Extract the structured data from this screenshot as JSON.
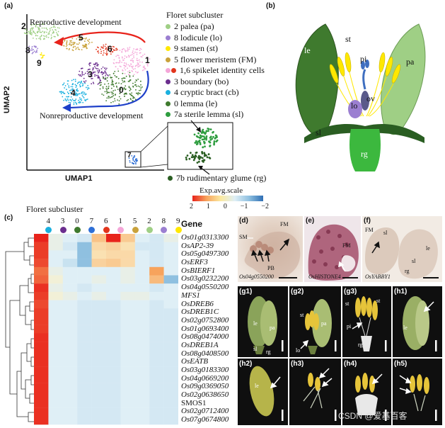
{
  "panel_a": {
    "label": "(a)",
    "y_axis": "UMAP2",
    "x_axis": "UMAP1",
    "top_arrow_text": "Reproductive development",
    "bottom_arrow_text": "Nonreproductive development",
    "cluster_numbers": [
      "2",
      "5",
      "6",
      "1",
      "8",
      "9",
      "3",
      "0",
      "4",
      "7"
    ],
    "legend_title": "Floret subcluster",
    "legend": [
      {
        "text": "2 palea (pa)",
        "colors": [
          "#9fcf85"
        ]
      },
      {
        "text": "8 lodicule (lo)",
        "colors": [
          "#9b7fd1"
        ]
      },
      {
        "text": "9 stamen (st)",
        "colors": [
          "#ffe800"
        ]
      },
      {
        "text": "5 flower meristem (FM)",
        "colors": [
          "#c9a23b"
        ]
      },
      {
        "text": "1,6 spikelet identity cells",
        "colors": [
          "#f4a6d8",
          "#e2351c"
        ]
      },
      {
        "text": "3 boundary (bo)",
        "colors": [
          "#6b2e8e"
        ]
      },
      {
        "text": "4 cryptic bract (cb)",
        "colors": [
          "#1ab0df"
        ]
      },
      {
        "text": "0 lemma (le)",
        "colors": [
          "#3f7a2e"
        ]
      },
      {
        "text": "7a sterile lemma (sl)",
        "colors": [
          "#2e9d3f"
        ]
      }
    ],
    "rg_label": "7b rudimentary glume (rg)",
    "rg_color": "#2a5e22"
  },
  "panel_b": {
    "label": "(b)",
    "parts": [
      "le",
      "st",
      "pi",
      "pa",
      "lo",
      "ov",
      "sl",
      "rg"
    ]
  },
  "panel_c": {
    "label": "(c)",
    "colorbar_title": "Exp.avg.scale",
    "colorbar_ticks": [
      "2",
      "1",
      "0",
      "−1",
      "−2"
    ],
    "column_title": "Floret subcluster",
    "gene_header": "Gene",
    "columns": [
      {
        "n": "4",
        "color": "#1ab0df"
      },
      {
        "n": "3",
        "color": "#6b2e8e"
      },
      {
        "n": "0",
        "color": "#3f7a2e"
      },
      {
        "n": "7",
        "color": "#2e6fd6"
      },
      {
        "n": "6",
        "color": "#e2351c"
      },
      {
        "n": "1",
        "color": "#f4a6d8"
      },
      {
        "n": "5",
        "color": "#c9a23b"
      },
      {
        "n": "2",
        "color": "#9fcf85"
      },
      {
        "n": "8",
        "color": "#9b7fd1"
      },
      {
        "n": "9",
        "color": "#ffe800"
      }
    ],
    "genes": [
      {
        "name": "Os01g0313300",
        "italic": true
      },
      {
        "name": "OsAP2-39",
        "italic": true
      },
      {
        "name": "Os05g0497300",
        "italic": true
      },
      {
        "name": "OsERF3",
        "italic": true
      },
      {
        "name": "OsBIERF1",
        "italic": true
      },
      {
        "name": "Os03g0232200",
        "italic": true
      },
      {
        "name": "Os04g0550200",
        "italic": true
      },
      {
        "name": "MFS1",
        "italic": true
      },
      {
        "name": "OsDREB6",
        "italic": true
      },
      {
        "name": "OsDREB1C",
        "italic": true
      },
      {
        "name": "Os02g0752800",
        "italic": true
      },
      {
        "name": "Os01g0693400",
        "italic": true
      },
      {
        "name": "Os08g0474000",
        "italic": true
      },
      {
        "name": "OsDREB1A",
        "italic": true
      },
      {
        "name": "Os08g0408500",
        "italic": true
      },
      {
        "name": "OsEATB",
        "italic": true
      },
      {
        "name": "Os03g0183300",
        "italic": true
      },
      {
        "name": "Os04g0669200",
        "italic": true
      },
      {
        "name": "Os09g0369050",
        "italic": true
      },
      {
        "name": "Os02g0638650",
        "italic": true
      },
      {
        "name": "SMOS1",
        "italic": false
      },
      {
        "name": "Os02g0712400",
        "italic": true
      },
      {
        "name": "Os07g0674800",
        "italic": true
      }
    ],
    "values": [
      [
        2.0,
        -0.2,
        -0.3,
        -0.4,
        0.6,
        2.0,
        0.5,
        -0.3,
        -0.4,
        -0.2
      ],
      [
        1.8,
        -0.2,
        -0.4,
        -1.0,
        0.3,
        0.4,
        0.2,
        -0.4,
        -0.4,
        -0.3
      ],
      [
        1.8,
        -0.3,
        -0.3,
        -1.0,
        0.2,
        0.3,
        0.3,
        -0.3,
        -0.4,
        -0.3
      ],
      [
        1.7,
        -0.3,
        -0.5,
        -1.0,
        0.4,
        0.5,
        0.3,
        -0.3,
        -0.4,
        -0.3
      ],
      [
        1.4,
        -0.2,
        -0.3,
        -0.3,
        -0.3,
        -0.3,
        -0.2,
        -0.3,
        1.0,
        -0.3
      ],
      [
        1.5,
        -0.1,
        -0.3,
        -0.3,
        -0.2,
        -0.3,
        -0.2,
        -0.3,
        0.7,
        -1.0
      ],
      [
        1.9,
        -0.2,
        -0.3,
        -0.4,
        -0.3,
        -0.3,
        -0.3,
        -0.3,
        -0.4,
        -0.3
      ],
      [
        1.8,
        -0.1,
        -0.2,
        -0.3,
        -0.2,
        -0.3,
        -0.2,
        -0.2,
        -0.3,
        -0.3
      ],
      [
        1.7,
        -0.3,
        -0.3,
        -0.4,
        -0.4,
        -0.4,
        -0.3,
        -0.3,
        -0.4,
        -0.3
      ],
      [
        1.8,
        -0.3,
        -0.3,
        -0.4,
        -0.4,
        -0.4,
        -0.3,
        -0.3,
        -0.4,
        -0.4
      ],
      [
        1.8,
        -0.3,
        -0.3,
        -0.4,
        -0.4,
        -0.4,
        -0.3,
        -0.3,
        -0.4,
        -0.4
      ],
      [
        1.8,
        -0.3,
        -0.3,
        -0.4,
        -0.4,
        -0.4,
        -0.3,
        -0.3,
        -0.4,
        -0.4
      ],
      [
        1.9,
        -0.3,
        -0.3,
        -0.4,
        -0.4,
        -0.4,
        -0.3,
        -0.3,
        -0.4,
        -0.4
      ],
      [
        1.9,
        -0.3,
        -0.3,
        -0.4,
        -0.4,
        -0.4,
        -0.3,
        -0.3,
        -0.4,
        -0.4
      ],
      [
        1.9,
        -0.3,
        -0.3,
        -0.4,
        -0.4,
        -0.4,
        -0.3,
        -0.3,
        -0.4,
        -0.4
      ],
      [
        1.9,
        -0.3,
        -0.3,
        -0.4,
        -0.4,
        -0.4,
        -0.3,
        -0.3,
        -0.4,
        -0.4
      ],
      [
        1.9,
        -0.3,
        -0.3,
        -0.4,
        -0.4,
        -0.4,
        -0.3,
        -0.3,
        -0.4,
        -0.4
      ],
      [
        1.9,
        -0.3,
        -0.3,
        -0.4,
        -0.4,
        -0.4,
        -0.3,
        -0.3,
        -0.4,
        -0.4
      ],
      [
        1.9,
        -0.3,
        -0.3,
        -0.4,
        -0.4,
        -0.4,
        -0.3,
        -0.3,
        -0.4,
        -0.4
      ],
      [
        1.9,
        -0.3,
        -0.3,
        -0.4,
        -0.4,
        -0.4,
        -0.3,
        -0.3,
        -0.4,
        -0.4
      ],
      [
        1.9,
        -0.3,
        -0.3,
        -0.4,
        -0.4,
        -0.4,
        -0.3,
        -0.3,
        -0.4,
        -0.4
      ],
      [
        1.9,
        -0.3,
        -0.3,
        -0.4,
        -0.4,
        -0.4,
        -0.3,
        -0.3,
        -0.4,
        -0.4
      ],
      [
        1.9,
        -0.3,
        -0.3,
        -0.4,
        -0.4,
        -0.4,
        -0.3,
        -0.3,
        -0.4,
        -0.4
      ]
    ]
  },
  "panel_d": {
    "label": "(d)",
    "gene": "Os04g0550200",
    "labels": [
      "FM",
      "SM",
      "PB"
    ]
  },
  "panel_e": {
    "label": "(e)",
    "gene": "OsHISTONE4",
    "labels": [
      "FM"
    ]
  },
  "panel_f": {
    "label": "(f)",
    "gene": "OsYABBY1",
    "labels": [
      "FM",
      "sl",
      "le",
      "sl",
      "rg"
    ]
  },
  "panel_g1": {
    "label": "(g1)",
    "labels": [
      "le",
      "pa",
      "sl",
      "rg"
    ]
  },
  "panel_g2": {
    "label": "(g2)",
    "labels": [
      "st",
      "pa",
      "lo"
    ]
  },
  "panel_g3": {
    "label": "(g3)",
    "labels": [
      "st",
      "st",
      "pi",
      "rg"
    ]
  },
  "panel_h1": {
    "label": "(h1)",
    "labels": [
      "le"
    ]
  },
  "panel_h2": {
    "label": "(h2)",
    "labels": [
      "le"
    ]
  },
  "panel_h3": {
    "label": "(h3)"
  },
  "panel_h4": {
    "label": "(h4)"
  },
  "panel_h5": {
    "label": "(h5)"
  },
  "watermark": "CSDN @爱基百客"
}
